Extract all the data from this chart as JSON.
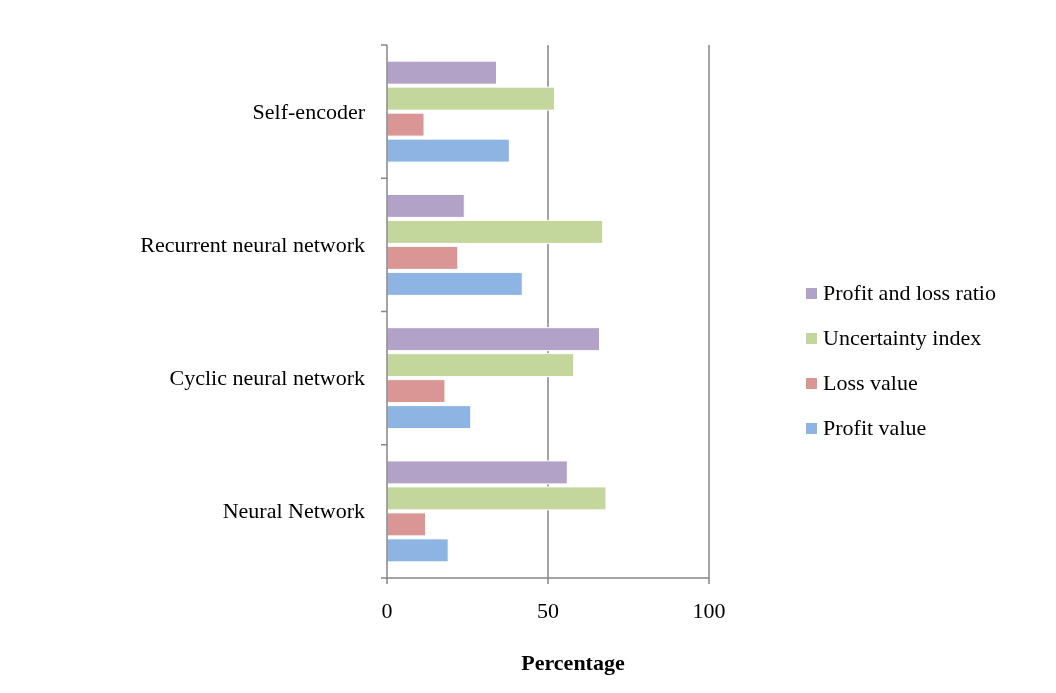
{
  "chart_data": {
    "type": "bar",
    "orientation": "horizontal",
    "xlabel": "Percentage",
    "categories": [
      "Self-encoder",
      "Recurrent neural network",
      "Cyclic neural network",
      "Neural Network"
    ],
    "series": [
      {
        "name": "Profit value",
        "color": "#8eb4e3",
        "values": [
          38,
          42,
          26,
          19
        ]
      },
      {
        "name": "Loss value",
        "color": "#d99694",
        "values": [
          11.5,
          22,
          18,
          12
        ]
      },
      {
        "name": "Uncertainty index",
        "color": "#c3d69b",
        "values": [
          52,
          67,
          58,
          68
        ]
      },
      {
        "name": "Profit and loss ratio",
        "color": "#b3a2c7",
        "values": [
          34,
          24,
          66,
          56
        ]
      }
    ],
    "xlim": [
      0,
      100
    ],
    "xticks": [
      0,
      50,
      100
    ],
    "grid": "x",
    "legend": "right"
  }
}
